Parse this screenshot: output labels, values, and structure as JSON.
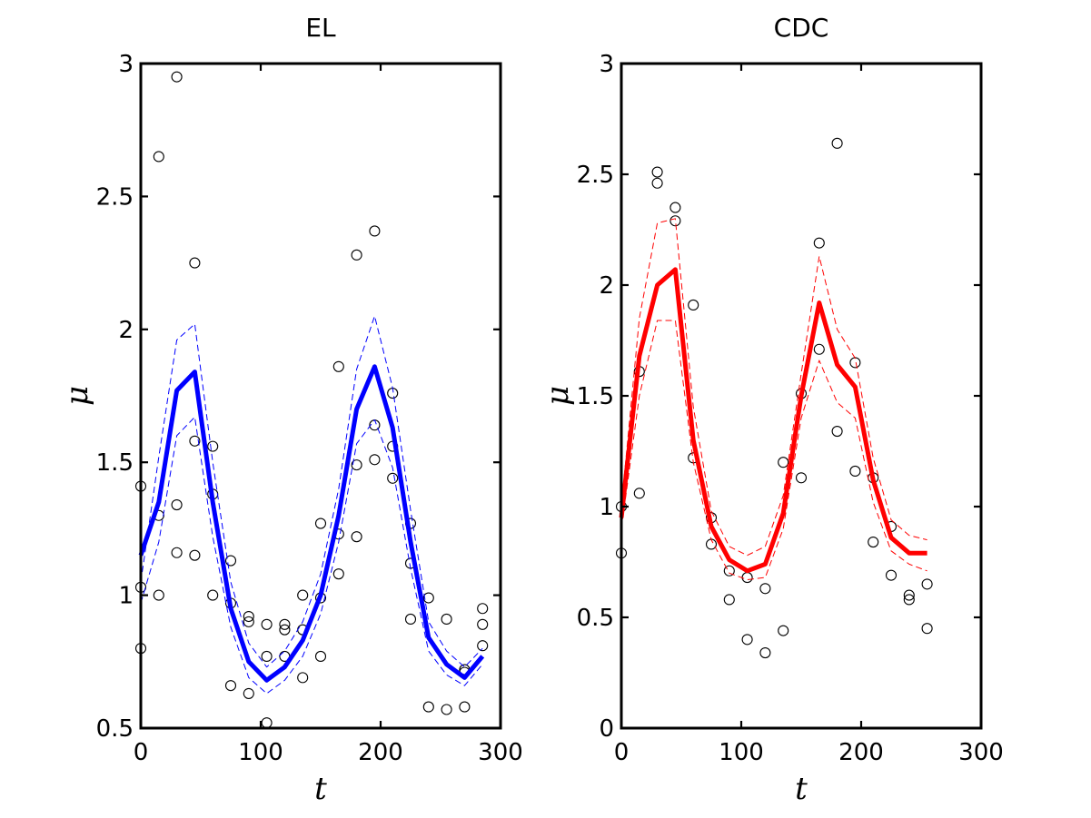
{
  "chart_data": [
    {
      "type": "line",
      "title": "EL",
      "xlabel": "t",
      "ylabel": "μ",
      "xlim": [
        0,
        300
      ],
      "ylim": [
        0.5,
        3
      ],
      "xticks": [
        "0",
        "100",
        "200",
        "300"
      ],
      "yticks": [
        "0.5",
        "1",
        "1.5",
        "2",
        "2.5",
        "3"
      ],
      "color": "#0000ff",
      "grid": false,
      "x": [
        0,
        15,
        30,
        45,
        60,
        75,
        90,
        105,
        120,
        135,
        150,
        165,
        180,
        195,
        210,
        225,
        240,
        255,
        270,
        285
      ],
      "series": [
        {
          "style": "solid",
          "values": [
            1.15,
            1.35,
            1.77,
            1.84,
            1.35,
            0.95,
            0.75,
            0.68,
            0.73,
            0.83,
            1.0,
            1.3,
            1.7,
            1.86,
            1.63,
            1.2,
            0.84,
            0.74,
            0.69,
            0.77
          ]
        },
        {
          "style": "dashed",
          "values": [
            1.05,
            1.52,
            1.96,
            2.02,
            1.5,
            1.05,
            0.82,
            0.73,
            0.79,
            0.9,
            1.08,
            1.4,
            1.85,
            2.05,
            1.78,
            1.32,
            0.9,
            0.79,
            0.73,
            0.8
          ]
        },
        {
          "style": "dashed",
          "values": [
            0.97,
            1.2,
            1.6,
            1.67,
            1.22,
            0.88,
            0.69,
            0.63,
            0.68,
            0.77,
            0.93,
            1.2,
            1.57,
            1.66,
            1.48,
            1.1,
            0.79,
            0.7,
            0.66,
            0.74
          ]
        }
      ],
      "observations": [
        {
          "x": 0,
          "y": 1.41
        },
        {
          "x": 0,
          "y": 1.03
        },
        {
          "x": 0,
          "y": 0.8
        },
        {
          "x": 15,
          "y": 2.65
        },
        {
          "x": 15,
          "y": 1.3
        },
        {
          "x": 15,
          "y": 1.0
        },
        {
          "x": 30,
          "y": 2.95
        },
        {
          "x": 30,
          "y": 1.34
        },
        {
          "x": 30,
          "y": 1.16
        },
        {
          "x": 45,
          "y": 2.25
        },
        {
          "x": 45,
          "y": 1.58
        },
        {
          "x": 45,
          "y": 1.15
        },
        {
          "x": 60,
          "y": 1.56
        },
        {
          "x": 60,
          "y": 1.38
        },
        {
          "x": 60,
          "y": 1.0
        },
        {
          "x": 75,
          "y": 1.13
        },
        {
          "x": 75,
          "y": 0.97
        },
        {
          "x": 75,
          "y": 0.66
        },
        {
          "x": 90,
          "y": 0.92
        },
        {
          "x": 90,
          "y": 0.9
        },
        {
          "x": 90,
          "y": 0.63
        },
        {
          "x": 105,
          "y": 0.89
        },
        {
          "x": 105,
          "y": 0.77
        },
        {
          "x": 105,
          "y": 0.52
        },
        {
          "x": 120,
          "y": 0.89
        },
        {
          "x": 120,
          "y": 0.87
        },
        {
          "x": 120,
          "y": 0.77
        },
        {
          "x": 135,
          "y": 1.0
        },
        {
          "x": 135,
          "y": 0.87
        },
        {
          "x": 135,
          "y": 0.69
        },
        {
          "x": 150,
          "y": 1.27
        },
        {
          "x": 150,
          "y": 0.99
        },
        {
          "x": 150,
          "y": 0.77
        },
        {
          "x": 165,
          "y": 1.86
        },
        {
          "x": 165,
          "y": 1.23
        },
        {
          "x": 165,
          "y": 1.08
        },
        {
          "x": 180,
          "y": 2.28
        },
        {
          "x": 180,
          "y": 1.49
        },
        {
          "x": 180,
          "y": 1.22
        },
        {
          "x": 195,
          "y": 2.37
        },
        {
          "x": 195,
          "y": 1.64
        },
        {
          "x": 195,
          "y": 1.51
        },
        {
          "x": 210,
          "y": 1.76
        },
        {
          "x": 210,
          "y": 1.56
        },
        {
          "x": 210,
          "y": 1.44
        },
        {
          "x": 225,
          "y": 1.27
        },
        {
          "x": 225,
          "y": 1.12
        },
        {
          "x": 225,
          "y": 0.91
        },
        {
          "x": 240,
          "y": 0.99
        },
        {
          "x": 240,
          "y": 0.58
        },
        {
          "x": 255,
          "y": 0.91
        },
        {
          "x": 255,
          "y": 0.57
        },
        {
          "x": 270,
          "y": 0.72
        },
        {
          "x": 270,
          "y": 0.71
        },
        {
          "x": 270,
          "y": 0.58
        },
        {
          "x": 285,
          "y": 0.95
        },
        {
          "x": 285,
          "y": 0.89
        },
        {
          "x": 285,
          "y": 0.81
        }
      ]
    },
    {
      "type": "line",
      "title": "CDC",
      "xlabel": "t",
      "ylabel": "μ",
      "xlim": [
        0,
        300
      ],
      "ylim": [
        0,
        3
      ],
      "xticks": [
        "0",
        "100",
        "200",
        "300"
      ],
      "yticks": [
        "0",
        "0.5",
        "1",
        "1.5",
        "2",
        "2.5",
        "3"
      ],
      "color": "#ff0000",
      "grid": false,
      "x": [
        0,
        15,
        30,
        45,
        60,
        75,
        90,
        105,
        120,
        135,
        150,
        165,
        180,
        195,
        210,
        225,
        240,
        255
      ],
      "series": [
        {
          "style": "solid",
          "values": [
            0.95,
            1.68,
            2.0,
            2.07,
            1.3,
            0.91,
            0.76,
            0.71,
            0.74,
            0.97,
            1.5,
            1.92,
            1.64,
            1.54,
            1.12,
            0.86,
            0.79,
            0.79
          ]
        },
        {
          "style": "dashed",
          "values": [
            1.0,
            1.85,
            2.28,
            2.3,
            1.45,
            0.98,
            0.82,
            0.78,
            0.82,
            1.05,
            1.6,
            2.13,
            1.8,
            1.67,
            1.22,
            0.94,
            0.87,
            0.85
          ]
        },
        {
          "style": "dashed",
          "values": [
            0.9,
            1.5,
            1.84,
            1.84,
            1.2,
            0.85,
            0.7,
            0.67,
            0.68,
            0.9,
            1.4,
            1.66,
            1.47,
            1.4,
            1.02,
            0.8,
            0.74,
            0.71
          ]
        }
      ],
      "observations": [
        {
          "x": 0,
          "y": 1.0
        },
        {
          "x": 0,
          "y": 0.79
        },
        {
          "x": 15,
          "y": 1.61
        },
        {
          "x": 15,
          "y": 1.06
        },
        {
          "x": 30,
          "y": 2.51
        },
        {
          "x": 30,
          "y": 2.46
        },
        {
          "x": 45,
          "y": 2.35
        },
        {
          "x": 45,
          "y": 2.29
        },
        {
          "x": 60,
          "y": 1.91
        },
        {
          "x": 60,
          "y": 1.22
        },
        {
          "x": 75,
          "y": 0.95
        },
        {
          "x": 75,
          "y": 0.83
        },
        {
          "x": 90,
          "y": 0.71
        },
        {
          "x": 90,
          "y": 0.58
        },
        {
          "x": 105,
          "y": 0.68
        },
        {
          "x": 105,
          "y": 0.4
        },
        {
          "x": 120,
          "y": 0.63
        },
        {
          "x": 120,
          "y": 0.34
        },
        {
          "x": 135,
          "y": 1.2
        },
        {
          "x": 135,
          "y": 0.44
        },
        {
          "x": 150,
          "y": 1.51
        },
        {
          "x": 150,
          "y": 1.13
        },
        {
          "x": 165,
          "y": 2.19
        },
        {
          "x": 165,
          "y": 1.71
        },
        {
          "x": 180,
          "y": 2.64
        },
        {
          "x": 180,
          "y": 1.34
        },
        {
          "x": 195,
          "y": 1.65
        },
        {
          "x": 195,
          "y": 1.16
        },
        {
          "x": 210,
          "y": 1.13
        },
        {
          "x": 210,
          "y": 0.84
        },
        {
          "x": 225,
          "y": 0.91
        },
        {
          "x": 225,
          "y": 0.69
        },
        {
          "x": 240,
          "y": 0.6
        },
        {
          "x": 240,
          "y": 0.58
        },
        {
          "x": 255,
          "y": 0.65
        },
        {
          "x": 255,
          "y": 0.45
        }
      ]
    }
  ]
}
